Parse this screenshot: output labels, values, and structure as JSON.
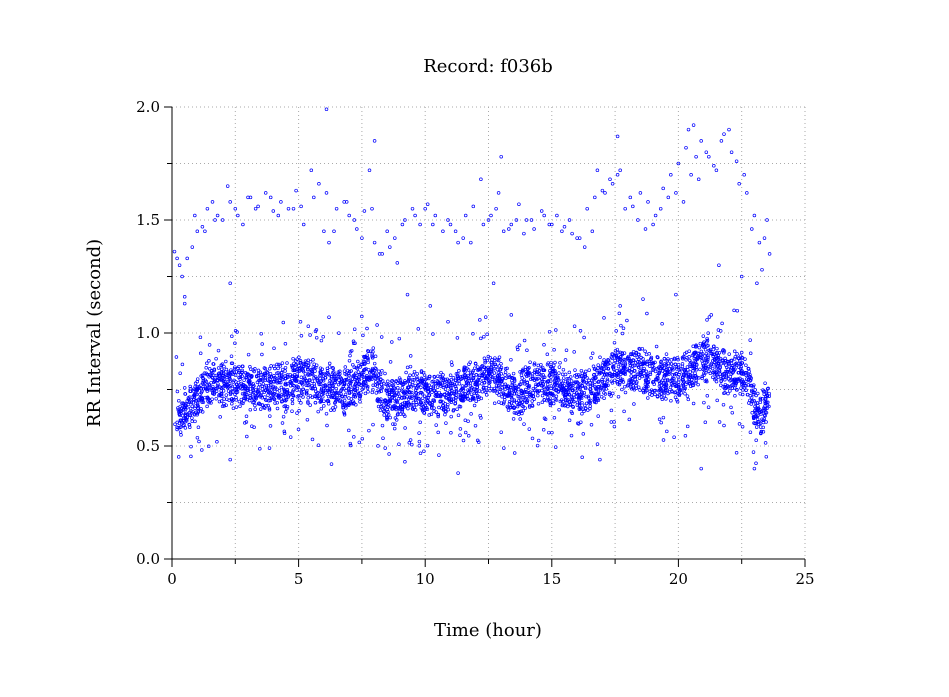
{
  "chart_data": {
    "type": "scatter",
    "title": "Record:  f036b",
    "xlabel": "Time (hour)",
    "ylabel": "RR Interval (second)",
    "xlim": [
      0,
      25
    ],
    "ylim": [
      0,
      2.0
    ],
    "x_ticks": [
      0,
      5,
      10,
      15,
      20,
      25
    ],
    "y_ticks": [
      0.0,
      0.5,
      1.0,
      1.5,
      2.0
    ],
    "x_tick_labels": [
      "0",
      "5",
      "10",
      "15",
      "20",
      "25"
    ],
    "y_tick_labels": [
      "0.0",
      "0.5",
      "1.0",
      "1.5",
      "2.0"
    ],
    "grid": true,
    "marker_color": "#0000ff",
    "series": [
      {
        "x": [
          0.1,
          0.3,
          0.5,
          0.6,
          0.8,
          1.0,
          1.2,
          1.4,
          1.6,
          1.8,
          2.0,
          2.2,
          2.5,
          2.8,
          3.1,
          3.4,
          3.7,
          4.0,
          4.3,
          4.6,
          4.9,
          5.2,
          5.5,
          5.8,
          6.0,
          6.2,
          6.5,
          6.8,
          7.0,
          7.3,
          7.6,
          7.8,
          8.0,
          8.3,
          8.6,
          8.9,
          9.2,
          9.5,
          9.8,
          10.1,
          10.4,
          10.7,
          11.0,
          11.3,
          11.6,
          11.9,
          12.2,
          12.5,
          12.8,
          13.1,
          13.4,
          13.7,
          14.0,
          14.3,
          14.6,
          14.9,
          15.2,
          15.5,
          15.8,
          16.1,
          16.4,
          16.7,
          17.0,
          17.3,
          17.6,
          17.9,
          18.2,
          18.5,
          18.8,
          19.1,
          19.4,
          19.7,
          20.0,
          20.3,
          20.6,
          20.9,
          21.2,
          21.5,
          21.8,
          22.1,
          22.4,
          22.7,
          23.0,
          23.3,
          23.5,
          0.2,
          0.4,
          0.9,
          1.3,
          1.7,
          2.3,
          2.6,
          3.0,
          3.3,
          3.9,
          4.2,
          4.8,
          5.1,
          5.6,
          6.1,
          6.4,
          6.9,
          7.2,
          7.5,
          7.9,
          8.2,
          8.5,
          8.8,
          9.1,
          9.6,
          10.0,
          10.3,
          10.9,
          11.2,
          11.5,
          11.8,
          12.3,
          12.6,
          12.9,
          13.3,
          13.6,
          13.9,
          14.2,
          14.7,
          15.0,
          15.4,
          15.7,
          16.0,
          16.3,
          16.6,
          17.1,
          17.4,
          17.7,
          18.1,
          18.4,
          18.7,
          19.0,
          19.3,
          19.6,
          19.9,
          20.2,
          20.5,
          20.8,
          21.1,
          21.4,
          21.7,
          22.0,
          22.3,
          22.6,
          22.9,
          23.2,
          23.4,
          23.6,
          0.5,
          2.3,
          6.2,
          7.7,
          9.3,
          10.2,
          10.9,
          12.7,
          13.4,
          15.9,
          17.7,
          18.6,
          19.9,
          21.3,
          22.2,
          23.1,
          6.1,
          8.0,
          13.0,
          16.8,
          17.6,
          20.4,
          20.7,
          21.6,
          22.5,
          2.3,
          6.3,
          9.2,
          11.3,
          16.2,
          16.9,
          20.9,
          22.3,
          23.0
        ],
        "y": [
          1.36,
          1.3,
          1.16,
          1.33,
          1.38,
          1.45,
          1.47,
          1.55,
          1.58,
          1.52,
          1.5,
          1.65,
          1.55,
          1.48,
          1.6,
          1.56,
          1.62,
          1.54,
          1.58,
          1.55,
          1.63,
          1.48,
          1.72,
          1.66,
          1.45,
          1.4,
          1.55,
          1.58,
          1.52,
          1.46,
          1.54,
          1.72,
          1.4,
          1.35,
          1.38,
          1.31,
          1.5,
          1.55,
          1.48,
          1.57,
          1.52,
          1.45,
          1.48,
          1.4,
          1.52,
          1.56,
          1.68,
          1.5,
          1.55,
          1.45,
          1.48,
          1.57,
          1.5,
          1.46,
          1.54,
          1.48,
          1.52,
          1.47,
          1.44,
          1.42,
          1.55,
          1.6,
          1.63,
          1.68,
          1.7,
          1.55,
          1.56,
          1.62,
          1.58,
          1.52,
          1.64,
          1.7,
          1.75,
          1.82,
          1.92,
          1.85,
          1.78,
          1.72,
          1.88,
          1.8,
          1.66,
          1.62,
          1.52,
          1.28,
          1.5,
          1.33,
          1.25,
          1.52,
          1.45,
          1.5,
          1.58,
          1.52,
          1.6,
          1.55,
          1.6,
          1.52,
          1.55,
          1.56,
          1.6,
          1.62,
          1.45,
          1.58,
          1.5,
          1.42,
          1.55,
          1.35,
          1.45,
          1.42,
          1.48,
          1.52,
          1.55,
          1.48,
          1.5,
          1.45,
          1.42,
          1.4,
          1.48,
          1.52,
          1.62,
          1.46,
          1.5,
          1.44,
          1.5,
          1.52,
          1.48,
          1.45,
          1.5,
          1.42,
          1.38,
          1.45,
          1.62,
          1.66,
          1.72,
          1.6,
          1.5,
          1.46,
          1.48,
          1.55,
          1.6,
          1.62,
          1.58,
          1.7,
          1.68,
          1.8,
          1.74,
          1.85,
          1.9,
          1.76,
          1.7,
          1.46,
          1.4,
          1.42,
          1.35,
          1.13,
          1.22,
          1.07,
          1.02,
          1.17,
          1.12,
          1.05,
          1.22,
          1.08,
          1.03,
          1.12,
          1.15,
          1.17,
          1.08,
          1.1,
          1.22,
          1.99,
          1.85,
          1.78,
          1.72,
          1.87,
          1.9,
          1.78,
          1.3,
          1.25,
          0.44,
          0.42,
          0.43,
          0.38,
          0.45,
          0.44,
          0.4,
          0.47,
          0.4
        ],
        "y_band_center": [
          [
            0.2,
            0.62
          ],
          [
            0.6,
            0.66
          ],
          [
            1.0,
            0.72
          ],
          [
            1.5,
            0.78
          ],
          [
            2.0,
            0.78
          ],
          [
            2.5,
            0.77
          ],
          [
            3.0,
            0.76
          ],
          [
            3.5,
            0.76
          ],
          [
            4.0,
            0.76
          ],
          [
            4.5,
            0.78
          ],
          [
            5.0,
            0.8
          ],
          [
            5.5,
            0.78
          ],
          [
            6.0,
            0.76
          ],
          [
            6.5,
            0.74
          ],
          [
            7.0,
            0.74
          ],
          [
            7.5,
            0.8
          ],
          [
            7.9,
            0.86
          ],
          [
            8.2,
            0.74
          ],
          [
            8.6,
            0.7
          ],
          [
            9.0,
            0.72
          ],
          [
            9.5,
            0.76
          ],
          [
            10.0,
            0.74
          ],
          [
            10.5,
            0.72
          ],
          [
            11.0,
            0.74
          ],
          [
            11.5,
            0.76
          ],
          [
            12.0,
            0.78
          ],
          [
            12.5,
            0.82
          ],
          [
            12.9,
            0.8
          ],
          [
            13.3,
            0.74
          ],
          [
            13.7,
            0.72
          ],
          [
            14.0,
            0.76
          ],
          [
            14.5,
            0.78
          ],
          [
            15.0,
            0.78
          ],
          [
            15.5,
            0.76
          ],
          [
            16.0,
            0.74
          ],
          [
            16.5,
            0.74
          ],
          [
            17.0,
            0.8
          ],
          [
            17.5,
            0.84
          ],
          [
            18.0,
            0.82
          ],
          [
            18.5,
            0.84
          ],
          [
            19.0,
            0.8
          ],
          [
            19.5,
            0.8
          ],
          [
            20.0,
            0.8
          ],
          [
            20.5,
            0.84
          ],
          [
            21.0,
            0.88
          ],
          [
            21.5,
            0.86
          ],
          [
            22.0,
            0.82
          ],
          [
            22.5,
            0.82
          ],
          [
            22.8,
            0.78
          ],
          [
            23.0,
            0.66
          ],
          [
            23.3,
            0.64
          ],
          [
            23.6,
            0.7
          ]
        ]
      }
    ]
  }
}
